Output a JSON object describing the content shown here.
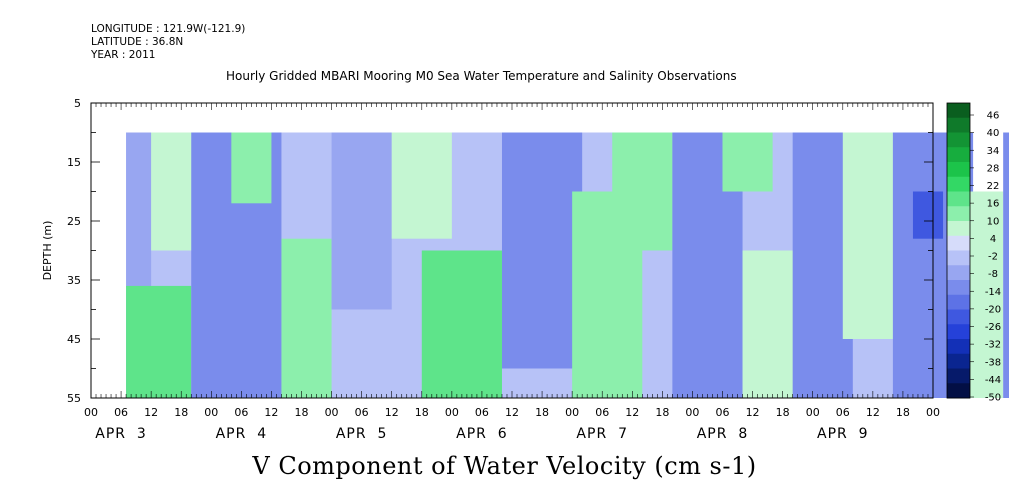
{
  "header": {
    "longitude": "LONGITUDE : 121.9W(-121.9)",
    "latitude": "LATITUDE : 36.8N",
    "year": "YEAR : 2011"
  },
  "chart_data": {
    "type": "heatmap",
    "title": "Hourly Gridded MBARI Mooring M0 Sea Water Temperature and Salinity Observations",
    "variable_label": "V Component of Water Velocity (cm s-1)",
    "ylabel": "DEPTH (m)",
    "xlabel": "",
    "y_axis": {
      "reversed": true,
      "ylim": [
        5,
        55
      ],
      "data_range": [
        10,
        55
      ],
      "ticks": [
        5,
        15,
        25,
        35,
        45,
        55
      ]
    },
    "x_axis": {
      "hour_ticks": [
        "00",
        "06",
        "12",
        "18",
        "00",
        "06",
        "12",
        "18",
        "00",
        "06",
        "12",
        "18",
        "00",
        "06",
        "12",
        "18",
        "00",
        "06",
        "12",
        "18",
        "00",
        "06",
        "12",
        "18",
        "00",
        "06",
        "12",
        "18",
        "00"
      ],
      "day_labels": [
        "APR 3",
        "APR 4",
        "APR 5",
        "APR 6",
        "APR 7",
        "APR 8",
        "APR 9"
      ],
      "data_start_hour": 7
    },
    "colorbar": {
      "min": -50,
      "max": 50,
      "tick_labels": [
        "46",
        "40",
        "34",
        "28",
        "22",
        "16",
        "10",
        "4",
        "-2",
        "-8",
        "-14",
        "-20",
        "-26",
        "-32",
        "-38",
        "-44",
        "-50"
      ],
      "colors": [
        "#0a5e1f",
        "#0f7a2a",
        "#139434",
        "#17ad3e",
        "#1cc44a",
        "#33d865",
        "#5ee48a",
        "#8cefac",
        "#c4f6d2",
        "#d6dcfa",
        "#b7c2f7",
        "#98a6f1",
        "#7a8cec",
        "#5d72e6",
        "#3f58e0",
        "#2541d9",
        "#1330b7",
        "#0a2590",
        "#061a6a",
        "#030f45"
      ]
    },
    "regions": [
      {
        "hours": [
          7,
          12
        ],
        "depths": [
          10,
          55
        ],
        "value": -5
      },
      {
        "hours": [
          12,
          30
        ],
        "depths": [
          10,
          30
        ],
        "value": 6
      },
      {
        "hours": [
          7,
          20
        ],
        "depths": [
          36,
          55
        ],
        "value": 16
      },
      {
        "hours": [
          20,
          38
        ],
        "depths": [
          10,
          55
        ],
        "value": -10
      },
      {
        "hours": [
          28,
          36
        ],
        "depths": [
          10,
          22
        ],
        "value": 14
      },
      {
        "hours": [
          38,
          48
        ],
        "depths": [
          28,
          55
        ],
        "value": 14
      },
      {
        "hours": [
          48,
          60
        ],
        "depths": [
          10,
          40
        ],
        "value": -8
      },
      {
        "hours": [
          60,
          72
        ],
        "depths": [
          10,
          28
        ],
        "value": 10
      },
      {
        "hours": [
          66,
          82
        ],
        "depths": [
          30,
          55
        ],
        "value": 18
      },
      {
        "hours": [
          82,
          98
        ],
        "depths": [
          10,
          50
        ],
        "value": -12
      },
      {
        "hours": [
          96,
          110
        ],
        "depths": [
          20,
          55
        ],
        "value": 14
      },
      {
        "hours": [
          104,
          116
        ],
        "depths": [
          10,
          30
        ],
        "value": 12
      },
      {
        "hours": [
          116,
          130
        ],
        "depths": [
          10,
          55
        ],
        "value": -10
      },
      {
        "hours": [
          126,
          136
        ],
        "depths": [
          10,
          20
        ],
        "value": 12
      },
      {
        "hours": [
          130,
          142
        ],
        "depths": [
          30,
          55
        ],
        "value": 8
      },
      {
        "hours": [
          140,
          152
        ],
        "depths": [
          10,
          55
        ],
        "value": -14
      },
      {
        "hours": [
          150,
          160
        ],
        "depths": [
          10,
          45
        ],
        "value": 8
      },
      {
        "hours": [
          160,
          176
        ],
        "depths": [
          10,
          55
        ],
        "value": -10
      },
      {
        "hours": [
          164,
          170
        ],
        "depths": [
          20,
          28
        ],
        "value": -20
      },
      {
        "hours": [
          172,
          182
        ],
        "depths": [
          20,
          55
        ],
        "value": 8
      },
      {
        "hours": [
          182,
          198
        ],
        "depths": [
          10,
          55
        ],
        "value": -14
      },
      {
        "hours": [
          186,
          194
        ],
        "depths": [
          18,
          26
        ],
        "value": -22
      },
      {
        "hours": [
          196,
          208
        ],
        "depths": [
          10,
          30
        ],
        "value": 6
      },
      {
        "hours": [
          200,
          214
        ],
        "depths": [
          30,
          55
        ],
        "value": 4
      },
      {
        "hours": [
          206,
          212
        ],
        "depths": [
          14,
          22
        ],
        "value": -20
      },
      {
        "hours": [
          212,
          216
        ],
        "depths": [
          10,
          55
        ],
        "value": 8
      }
    ]
  }
}
